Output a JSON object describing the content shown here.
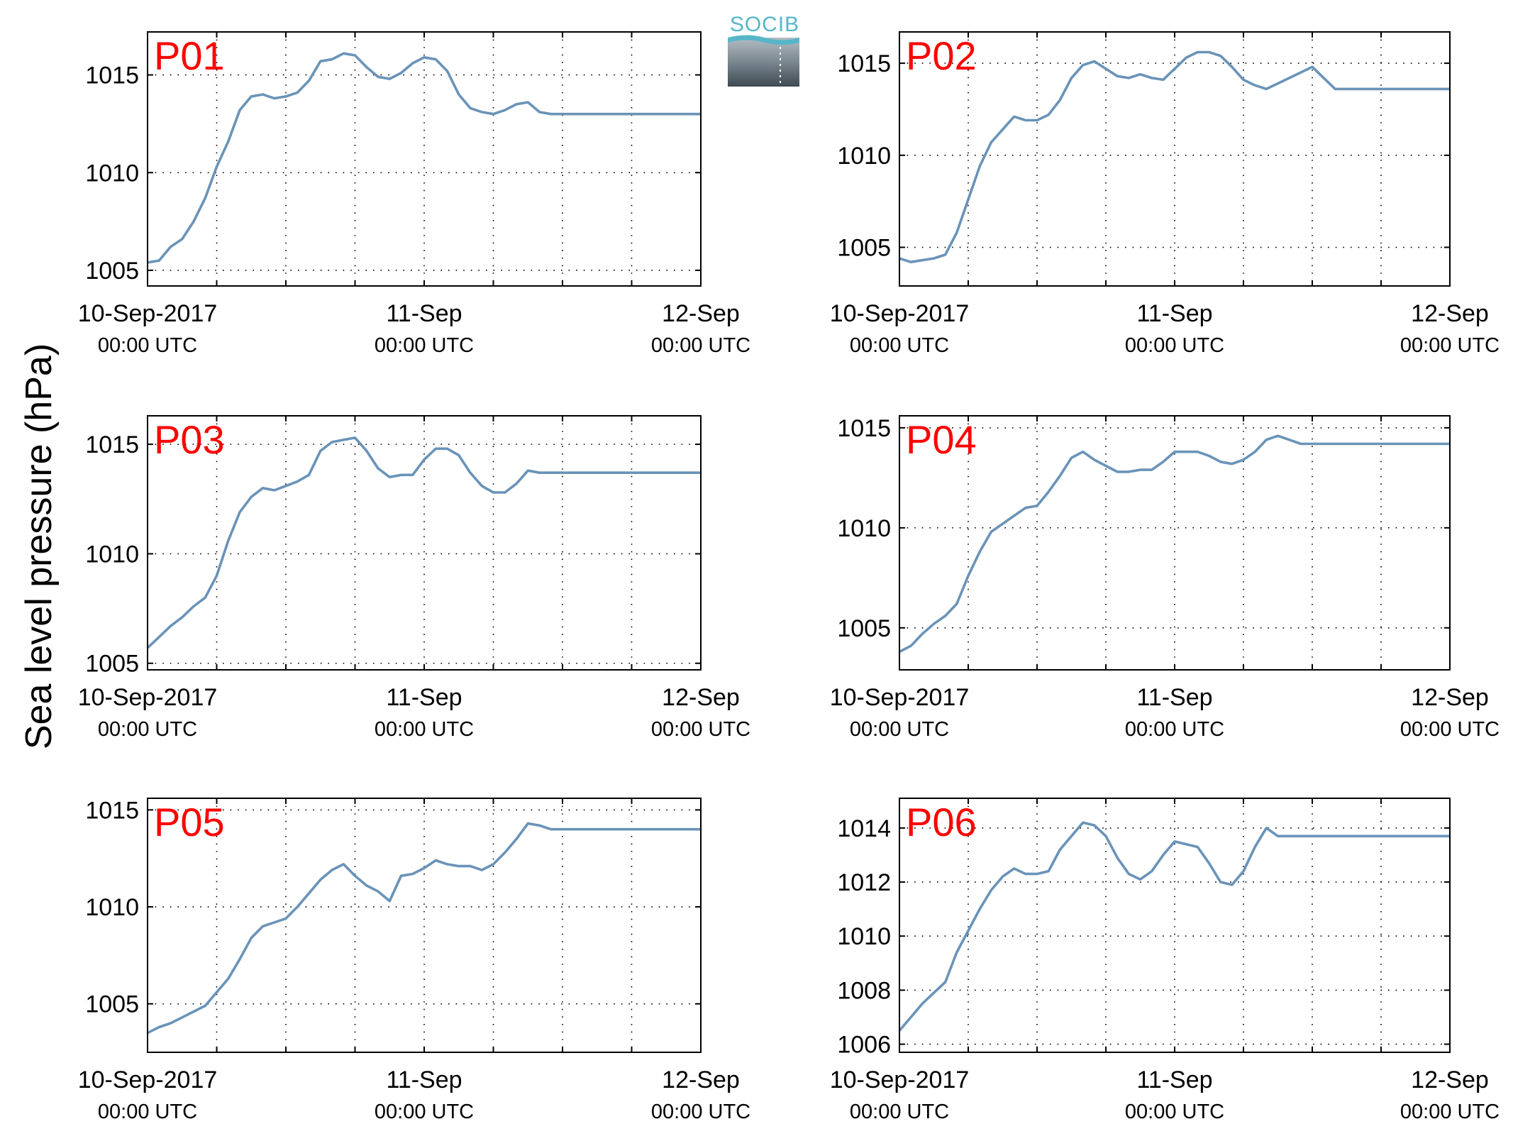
{
  "figure": {
    "ylabel": "Sea level pressure (hPa)",
    "logo_text": "SOCIB",
    "colors": {
      "line": "#6a93b8",
      "panel_label": "#ff0000",
      "axis": "#000000",
      "grid": "#000000"
    }
  },
  "chart_data": [
    {
      "type": "line",
      "title": "P01",
      "x_ticks": [
        {
          "major": "10-Sep-2017",
          "minor": "00:00 UTC"
        },
        {
          "major": "11-Sep",
          "minor": "00:00 UTC"
        },
        {
          "major": "12-Sep",
          "minor": "00:00 UTC"
        }
      ],
      "xlim_hours": [
        0,
        48
      ],
      "ylim": [
        1004.2,
        1017.2
      ],
      "yticks": [
        1005,
        1010,
        1015
      ],
      "grid": true,
      "series": [
        {
          "x_hours": [
            0,
            1,
            2,
            3,
            4,
            5,
            6,
            7,
            8,
            9,
            10,
            11,
            12,
            13,
            14,
            15,
            16,
            17,
            18,
            19,
            20,
            21,
            22,
            23,
            24,
            25,
            26,
            27,
            28,
            29,
            30,
            31,
            32,
            33,
            34,
            35,
            36,
            37,
            38,
            39,
            40,
            41,
            42,
            43,
            44,
            45,
            46,
            47,
            48
          ],
          "values": [
            1005.4,
            1005.5,
            1006.2,
            1006.6,
            1007.5,
            1008.7,
            1010.3,
            1011.6,
            1013.2,
            1013.9,
            1014.0,
            1013.8,
            1013.9,
            1014.1,
            1014.7,
            1015.7,
            1015.8,
            1016.1,
            1016.0,
            1015.4,
            1014.9,
            1014.8,
            1015.1,
            1015.6,
            1015.9,
            1015.8,
            1015.2,
            1014.0,
            1013.3,
            1013.1,
            1013.0,
            1013.2,
            1013.5,
            1013.6,
            1013.1,
            1013.0,
            1013.0,
            1013.0,
            1013.0,
            1013.0,
            1013.0,
            1013.0,
            1013.0,
            1013.0,
            1013.0,
            1013.0,
            1013.0,
            1013.0,
            1013.0
          ]
        }
      ]
    },
    {
      "type": "line",
      "title": "P02",
      "x_ticks": [
        {
          "major": "10-Sep-2017",
          "minor": "00:00 UTC"
        },
        {
          "major": "11-Sep",
          "minor": "00:00 UTC"
        },
        {
          "major": "12-Sep",
          "minor": "00:00 UTC"
        }
      ],
      "xlim_hours": [
        0,
        48
      ],
      "ylim": [
        1002.9,
        1016.7
      ],
      "yticks": [
        1005,
        1010,
        1015
      ],
      "grid": true,
      "series": [
        {
          "x_hours": [
            0,
            1,
            2,
            3,
            4,
            5,
            6,
            7,
            8,
            9,
            10,
            11,
            12,
            13,
            14,
            15,
            16,
            17,
            18,
            19,
            20,
            21,
            22,
            23,
            24,
            25,
            26,
            27,
            28,
            29,
            30,
            31,
            32,
            33,
            34,
            35,
            36,
            37,
            38,
            39,
            40,
            41,
            42,
            43,
            44,
            45,
            46,
            47,
            48
          ],
          "values": [
            1004.4,
            1004.2,
            1004.3,
            1004.4,
            1004.6,
            1005.8,
            1007.6,
            1009.4,
            1010.7,
            1011.4,
            1012.1,
            1011.9,
            1011.9,
            1012.2,
            1013.0,
            1014.2,
            1014.9,
            1015.1,
            1014.7,
            1014.3,
            1014.2,
            1014.4,
            1014.2,
            1014.1,
            1014.7,
            1015.3,
            1015.6,
            1015.6,
            1015.4,
            1014.8,
            1014.1,
            1013.8,
            1013.6,
            1013.9,
            1014.2,
            1014.5,
            1014.8,
            1014.2,
            1013.6,
            1013.6,
            1013.6,
            1013.6,
            1013.6,
            1013.6,
            1013.6,
            1013.6,
            1013.6,
            1013.6,
            1013.6
          ]
        }
      ]
    },
    {
      "type": "line",
      "title": "P03",
      "x_ticks": [
        {
          "major": "10-Sep-2017",
          "minor": "00:00 UTC"
        },
        {
          "major": "11-Sep",
          "minor": "00:00 UTC"
        },
        {
          "major": "12-Sep",
          "minor": "00:00 UTC"
        }
      ],
      "xlim_hours": [
        0,
        48
      ],
      "ylim": [
        1004.7,
        1016.3
      ],
      "yticks": [
        1005,
        1010,
        1015
      ],
      "grid": true,
      "series": [
        {
          "x_hours": [
            0,
            1,
            2,
            3,
            4,
            5,
            6,
            7,
            8,
            9,
            10,
            11,
            12,
            13,
            14,
            15,
            16,
            17,
            18,
            19,
            20,
            21,
            22,
            23,
            24,
            25,
            26,
            27,
            28,
            29,
            30,
            31,
            32,
            33,
            34,
            35,
            36,
            37,
            38,
            39,
            40,
            41,
            42,
            43,
            44,
            45,
            46,
            47,
            48
          ],
          "values": [
            1005.7,
            1006.2,
            1006.7,
            1007.1,
            1007.6,
            1008.0,
            1009.0,
            1010.6,
            1011.9,
            1012.6,
            1013.0,
            1012.9,
            1013.1,
            1013.3,
            1013.6,
            1014.7,
            1015.1,
            1015.2,
            1015.3,
            1014.7,
            1013.9,
            1013.5,
            1013.6,
            1013.6,
            1014.3,
            1014.8,
            1014.8,
            1014.5,
            1013.7,
            1013.1,
            1012.8,
            1012.8,
            1013.2,
            1013.8,
            1013.7,
            1013.7,
            1013.7,
            1013.7,
            1013.7,
            1013.7,
            1013.7,
            1013.7,
            1013.7,
            1013.7,
            1013.7,
            1013.7,
            1013.7,
            1013.7,
            1013.7
          ]
        }
      ]
    },
    {
      "type": "line",
      "title": "P04",
      "x_ticks": [
        {
          "major": "10-Sep-2017",
          "minor": "00:00 UTC"
        },
        {
          "major": "11-Sep",
          "minor": "00:00 UTC"
        },
        {
          "major": "12-Sep",
          "minor": "00:00 UTC"
        }
      ],
      "xlim_hours": [
        0,
        48
      ],
      "ylim": [
        1002.9,
        1015.6
      ],
      "yticks": [
        1005,
        1010,
        1015
      ],
      "grid": true,
      "series": [
        {
          "x_hours": [
            0,
            1,
            2,
            3,
            4,
            5,
            6,
            7,
            8,
            9,
            10,
            11,
            12,
            13,
            14,
            15,
            16,
            17,
            18,
            19,
            20,
            21,
            22,
            23,
            24,
            25,
            26,
            27,
            28,
            29,
            30,
            31,
            32,
            33,
            34,
            35,
            36,
            37,
            38,
            39,
            40,
            41,
            42,
            43,
            44,
            45,
            46,
            47,
            48
          ],
          "values": [
            1003.8,
            1004.1,
            1004.7,
            1005.2,
            1005.6,
            1006.2,
            1007.6,
            1008.8,
            1009.8,
            1010.2,
            1010.6,
            1011.0,
            1011.1,
            1011.8,
            1012.6,
            1013.5,
            1013.8,
            1013.4,
            1013.1,
            1012.8,
            1012.8,
            1012.9,
            1012.9,
            1013.3,
            1013.8,
            1013.8,
            1013.8,
            1013.6,
            1013.3,
            1013.2,
            1013.4,
            1013.8,
            1014.4,
            1014.6,
            1014.4,
            1014.2,
            1014.2,
            1014.2,
            1014.2,
            1014.2,
            1014.2,
            1014.2,
            1014.2,
            1014.2,
            1014.2,
            1014.2,
            1014.2,
            1014.2,
            1014.2
          ]
        }
      ]
    },
    {
      "type": "line",
      "title": "P05",
      "x_ticks": [
        {
          "major": "10-Sep-2017",
          "minor": "00:00 UTC"
        },
        {
          "major": "11-Sep",
          "minor": "00:00 UTC"
        },
        {
          "major": "12-Sep",
          "minor": "00:00 UTC"
        }
      ],
      "xlim_hours": [
        0,
        48
      ],
      "ylim": [
        1002.5,
        1015.6
      ],
      "yticks": [
        1005,
        1010,
        1015
      ],
      "grid": true,
      "series": [
        {
          "x_hours": [
            0,
            1,
            2,
            3,
            4,
            5,
            6,
            7,
            8,
            9,
            10,
            11,
            12,
            13,
            14,
            15,
            16,
            17,
            18,
            19,
            20,
            21,
            22,
            23,
            24,
            25,
            26,
            27,
            28,
            29,
            30,
            31,
            32,
            33,
            34,
            35,
            36,
            37,
            38,
            39,
            40,
            41,
            42,
            43,
            44,
            45,
            46,
            47,
            48
          ],
          "values": [
            1003.5,
            1003.8,
            1004.0,
            1004.3,
            1004.6,
            1004.9,
            1005.6,
            1006.3,
            1007.3,
            1008.4,
            1009.0,
            1009.2,
            1009.4,
            1010.0,
            1010.7,
            1011.4,
            1011.9,
            1012.2,
            1011.6,
            1011.1,
            1010.8,
            1010.3,
            1011.6,
            1011.7,
            1012.0,
            1012.4,
            1012.2,
            1012.1,
            1012.1,
            1011.9,
            1012.2,
            1012.8,
            1013.5,
            1014.3,
            1014.2,
            1014.0,
            1014.0,
            1014.0,
            1014.0,
            1014.0,
            1014.0,
            1014.0,
            1014.0,
            1014.0,
            1014.0,
            1014.0,
            1014.0,
            1014.0,
            1014.0
          ]
        }
      ]
    },
    {
      "type": "line",
      "title": "P06",
      "x_ticks": [
        {
          "major": "10-Sep-2017",
          "minor": "00:00 UTC"
        },
        {
          "major": "11-Sep",
          "minor": "00:00 UTC"
        },
        {
          "major": "12-Sep",
          "minor": "00:00 UTC"
        }
      ],
      "xlim_hours": [
        0,
        48
      ],
      "ylim": [
        1005.7,
        1015.1
      ],
      "yticks": [
        1006,
        1008,
        1010,
        1012,
        1014
      ],
      "grid": true,
      "series": [
        {
          "x_hours": [
            0,
            1,
            2,
            3,
            4,
            5,
            6,
            7,
            8,
            9,
            10,
            11,
            12,
            13,
            14,
            15,
            16,
            17,
            18,
            19,
            20,
            21,
            22,
            23,
            24,
            25,
            26,
            27,
            28,
            29,
            30,
            31,
            32,
            33,
            34,
            35,
            36,
            37,
            38,
            39,
            40,
            41,
            42,
            43,
            44,
            45,
            46,
            47,
            48
          ],
          "values": [
            1006.5,
            1007.0,
            1007.5,
            1007.9,
            1008.3,
            1009.4,
            1010.2,
            1011.0,
            1011.7,
            1012.2,
            1012.5,
            1012.3,
            1012.3,
            1012.4,
            1013.2,
            1013.7,
            1014.2,
            1014.1,
            1013.7,
            1012.9,
            1012.3,
            1012.1,
            1012.4,
            1013.0,
            1013.5,
            1013.4,
            1013.3,
            1012.7,
            1012.0,
            1011.9,
            1012.4,
            1013.3,
            1014.0,
            1013.7,
            1013.7,
            1013.7,
            1013.7,
            1013.7,
            1013.7,
            1013.7,
            1013.7,
            1013.7,
            1013.7,
            1013.7,
            1013.7,
            1013.7,
            1013.7,
            1013.7,
            1013.7
          ]
        }
      ]
    }
  ]
}
